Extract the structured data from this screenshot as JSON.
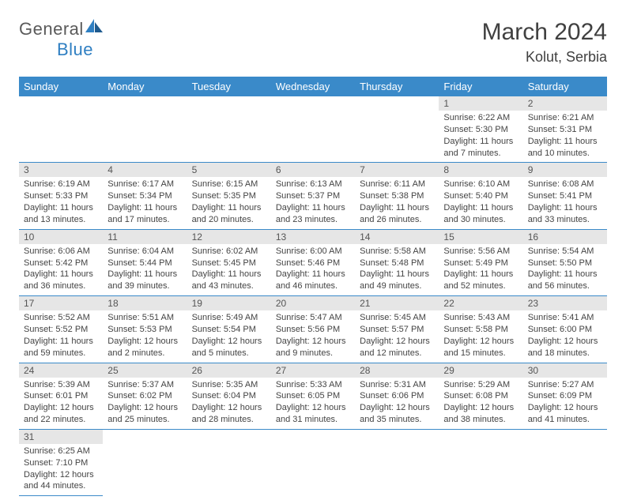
{
  "brand": {
    "name_gray": "General",
    "name_blue": "Blue"
  },
  "title": "March 2024",
  "location": "Kolut, Serbia",
  "colors": {
    "header_bg": "#3a8ac9",
    "header_text": "#ffffff",
    "daynum_bg": "#e6e6e6",
    "text": "#444444",
    "rule": "#3a8ac9"
  },
  "day_headers": [
    "Sunday",
    "Monday",
    "Tuesday",
    "Wednesday",
    "Thursday",
    "Friday",
    "Saturday"
  ],
  "weeks": [
    {
      "nums": [
        "",
        "",
        "",
        "",
        "",
        "1",
        "2"
      ],
      "cells": [
        null,
        null,
        null,
        null,
        null,
        {
          "sunrise": "6:22 AM",
          "sunset": "5:30 PM",
          "daylight": "11 hours and 7 minutes."
        },
        {
          "sunrise": "6:21 AM",
          "sunset": "5:31 PM",
          "daylight": "11 hours and 10 minutes."
        }
      ]
    },
    {
      "nums": [
        "3",
        "4",
        "5",
        "6",
        "7",
        "8",
        "9"
      ],
      "cells": [
        {
          "sunrise": "6:19 AM",
          "sunset": "5:33 PM",
          "daylight": "11 hours and 13 minutes."
        },
        {
          "sunrise": "6:17 AM",
          "sunset": "5:34 PM",
          "daylight": "11 hours and 17 minutes."
        },
        {
          "sunrise": "6:15 AM",
          "sunset": "5:35 PM",
          "daylight": "11 hours and 20 minutes."
        },
        {
          "sunrise": "6:13 AM",
          "sunset": "5:37 PM",
          "daylight": "11 hours and 23 minutes."
        },
        {
          "sunrise": "6:11 AM",
          "sunset": "5:38 PM",
          "daylight": "11 hours and 26 minutes."
        },
        {
          "sunrise": "6:10 AM",
          "sunset": "5:40 PM",
          "daylight": "11 hours and 30 minutes."
        },
        {
          "sunrise": "6:08 AM",
          "sunset": "5:41 PM",
          "daylight": "11 hours and 33 minutes."
        }
      ]
    },
    {
      "nums": [
        "10",
        "11",
        "12",
        "13",
        "14",
        "15",
        "16"
      ],
      "cells": [
        {
          "sunrise": "6:06 AM",
          "sunset": "5:42 PM",
          "daylight": "11 hours and 36 minutes."
        },
        {
          "sunrise": "6:04 AM",
          "sunset": "5:44 PM",
          "daylight": "11 hours and 39 minutes."
        },
        {
          "sunrise": "6:02 AM",
          "sunset": "5:45 PM",
          "daylight": "11 hours and 43 minutes."
        },
        {
          "sunrise": "6:00 AM",
          "sunset": "5:46 PM",
          "daylight": "11 hours and 46 minutes."
        },
        {
          "sunrise": "5:58 AM",
          "sunset": "5:48 PM",
          "daylight": "11 hours and 49 minutes."
        },
        {
          "sunrise": "5:56 AM",
          "sunset": "5:49 PM",
          "daylight": "11 hours and 52 minutes."
        },
        {
          "sunrise": "5:54 AM",
          "sunset": "5:50 PM",
          "daylight": "11 hours and 56 minutes."
        }
      ]
    },
    {
      "nums": [
        "17",
        "18",
        "19",
        "20",
        "21",
        "22",
        "23"
      ],
      "cells": [
        {
          "sunrise": "5:52 AM",
          "sunset": "5:52 PM",
          "daylight": "11 hours and 59 minutes."
        },
        {
          "sunrise": "5:51 AM",
          "sunset": "5:53 PM",
          "daylight": "12 hours and 2 minutes."
        },
        {
          "sunrise": "5:49 AM",
          "sunset": "5:54 PM",
          "daylight": "12 hours and 5 minutes."
        },
        {
          "sunrise": "5:47 AM",
          "sunset": "5:56 PM",
          "daylight": "12 hours and 9 minutes."
        },
        {
          "sunrise": "5:45 AM",
          "sunset": "5:57 PM",
          "daylight": "12 hours and 12 minutes."
        },
        {
          "sunrise": "5:43 AM",
          "sunset": "5:58 PM",
          "daylight": "12 hours and 15 minutes."
        },
        {
          "sunrise": "5:41 AM",
          "sunset": "6:00 PM",
          "daylight": "12 hours and 18 minutes."
        }
      ]
    },
    {
      "nums": [
        "24",
        "25",
        "26",
        "27",
        "28",
        "29",
        "30"
      ],
      "cells": [
        {
          "sunrise": "5:39 AM",
          "sunset": "6:01 PM",
          "daylight": "12 hours and 22 minutes."
        },
        {
          "sunrise": "5:37 AM",
          "sunset": "6:02 PM",
          "daylight": "12 hours and 25 minutes."
        },
        {
          "sunrise": "5:35 AM",
          "sunset": "6:04 PM",
          "daylight": "12 hours and 28 minutes."
        },
        {
          "sunrise": "5:33 AM",
          "sunset": "6:05 PM",
          "daylight": "12 hours and 31 minutes."
        },
        {
          "sunrise": "5:31 AM",
          "sunset": "6:06 PM",
          "daylight": "12 hours and 35 minutes."
        },
        {
          "sunrise": "5:29 AM",
          "sunset": "6:08 PM",
          "daylight": "12 hours and 38 minutes."
        },
        {
          "sunrise": "5:27 AM",
          "sunset": "6:09 PM",
          "daylight": "12 hours and 41 minutes."
        }
      ]
    },
    {
      "nums": [
        "31",
        "",
        "",
        "",
        "",
        "",
        ""
      ],
      "cells": [
        {
          "sunrise": "6:25 AM",
          "sunset": "7:10 PM",
          "daylight": "12 hours and 44 minutes."
        },
        null,
        null,
        null,
        null,
        null,
        null
      ]
    }
  ],
  "labels": {
    "sunrise": "Sunrise: ",
    "sunset": "Sunset: ",
    "daylight": "Daylight: "
  }
}
